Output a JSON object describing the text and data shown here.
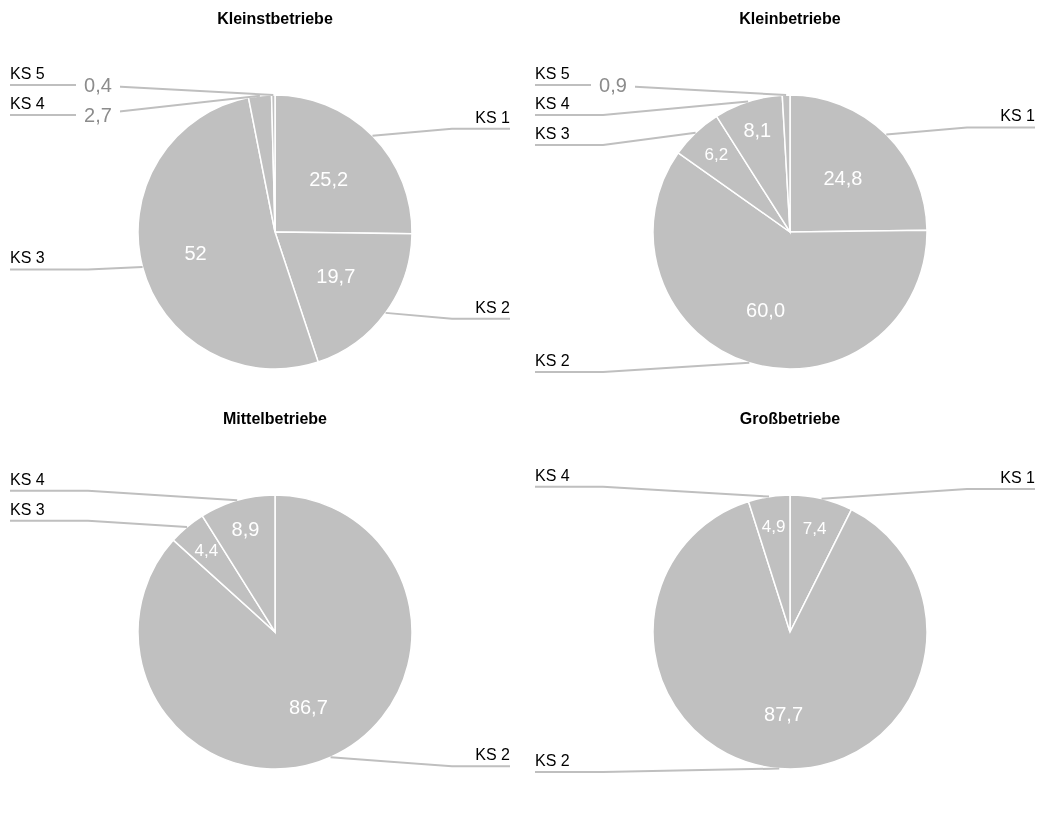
{
  "chart_data": [
    {
      "type": "pie",
      "title": "Kleinstbetriebe",
      "categories": [
        "KS 1",
        "KS 2",
        "KS 3",
        "KS 4",
        "KS 5"
      ],
      "values": [
        25.2,
        19.7,
        52,
        2.7,
        0.4
      ],
      "value_labels": [
        "25,2",
        "19,7",
        "52",
        "2,7",
        "0,4"
      ],
      "colors": [
        "#c0c0c0",
        "#c0c0c0",
        "#c0c0c0",
        "#c0c0c0",
        "#c0c0c0"
      ]
    },
    {
      "type": "pie",
      "title": "Kleinbetriebe",
      "categories": [
        "KS 1",
        "KS 2",
        "KS 3",
        "KS 4",
        "KS 5"
      ],
      "values": [
        24.8,
        60.0,
        6.2,
        8.1,
        0.9
      ],
      "value_labels": [
        "24,8",
        "60,0",
        "6,2",
        "8,1",
        "0,9"
      ],
      "colors": [
        "#c0c0c0",
        "#c0c0c0",
        "#c0c0c0",
        "#c0c0c0",
        "#c0c0c0"
      ]
    },
    {
      "type": "pie",
      "title": "Mittelbetriebe",
      "categories": [
        "KS 2",
        "KS 3",
        "KS 4"
      ],
      "values": [
        86.7,
        4.4,
        8.9
      ],
      "value_labels": [
        "86,7",
        "4,4",
        "8,9"
      ],
      "colors": [
        "#c0c0c0",
        "#c0c0c0",
        "#c0c0c0"
      ]
    },
    {
      "type": "pie",
      "title": "Großbetriebe",
      "categories": [
        "KS 1",
        "KS 2",
        "KS 4"
      ],
      "values": [
        7.4,
        87.7,
        4.9
      ],
      "value_labels": [
        "7,4",
        "87,7",
        "4,9"
      ],
      "colors": [
        "#c0c0c0",
        "#c0c0c0",
        "#c0c0c0"
      ]
    }
  ]
}
